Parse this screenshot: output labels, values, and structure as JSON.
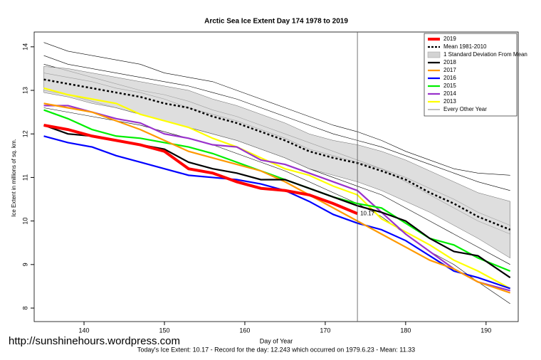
{
  "chart_data": {
    "type": "line",
    "title": "Arctic Sea Ice Extent Day 174 1978 to 2019",
    "xlabel": "Day of Year",
    "ylabel": "Ice Extent in millions of sq. km.",
    "footer": "Today's Ice Extent: 10.17  - Record for the day: 12.243 which occurred on 1979.6.23  - Mean: 11.33",
    "watermark": "http://sunshinehours.wordpress.com",
    "annotation": "10.17",
    "marker_x": 174,
    "xlim": [
      133.8,
      194
    ],
    "xticks": [
      140,
      150,
      160,
      170,
      180,
      190
    ],
    "ylim": [
      7.69,
      14.34
    ],
    "yticks": [
      8,
      9,
      10,
      11,
      12,
      13,
      14
    ],
    "legend": "top-right",
    "x": [
      135,
      138,
      141,
      144,
      147,
      150,
      153,
      156,
      159,
      162,
      165,
      168,
      171,
      174,
      177,
      180,
      183,
      186,
      189,
      193
    ],
    "series": [
      {
        "name": "2019",
        "color": "#ff0000",
        "values": [
          12.2,
          12.1,
          11.95,
          11.85,
          11.75,
          11.6,
          11.2,
          11.1,
          10.9,
          10.75,
          10.7,
          10.6,
          10.4,
          10.17,
          null,
          null,
          null,
          null,
          null,
          null
        ]
      },
      {
        "name": "Mean 1981-2010",
        "color": "#000000",
        "dash": true,
        "values": [
          13.25,
          13.15,
          13.05,
          12.95,
          12.85,
          12.7,
          12.6,
          12.4,
          12.25,
          12.05,
          11.85,
          11.6,
          11.45,
          11.33,
          11.15,
          10.95,
          10.65,
          10.4,
          10.1,
          9.8
        ]
      },
      {
        "name": "2018",
        "color": "#000000",
        "values": [
          12.2,
          12.0,
          11.95,
          11.85,
          11.75,
          11.65,
          11.35,
          11.2,
          11.1,
          10.95,
          10.95,
          10.75,
          10.55,
          10.35,
          10.2,
          10.0,
          9.6,
          9.3,
          9.2,
          8.7
        ]
      },
      {
        "name": "2017",
        "color": "#ff9900",
        "values": [
          12.7,
          12.6,
          12.5,
          12.3,
          12.1,
          11.85,
          11.6,
          11.45,
          11.3,
          11.15,
          10.9,
          10.6,
          10.3,
          10.0,
          9.7,
          9.4,
          9.1,
          8.9,
          8.6,
          8.35
        ]
      },
      {
        "name": "2016",
        "color": "#0000ff",
        "values": [
          11.95,
          11.8,
          11.7,
          11.5,
          11.35,
          11.2,
          11.05,
          11.0,
          10.95,
          10.85,
          10.7,
          10.45,
          10.15,
          9.95,
          9.8,
          9.55,
          9.2,
          8.85,
          8.7,
          8.45
        ]
      },
      {
        "name": "2015",
        "color": "#00ee00",
        "values": [
          12.55,
          12.35,
          12.1,
          11.95,
          11.9,
          11.8,
          11.7,
          11.55,
          11.35,
          11.15,
          10.95,
          10.75,
          10.55,
          10.4,
          10.3,
          9.95,
          9.6,
          9.45,
          9.15,
          8.85
        ]
      },
      {
        "name": "2014",
        "color": "#9933cc",
        "values": [
          12.65,
          12.65,
          12.5,
          12.35,
          12.25,
          12.0,
          11.9,
          11.75,
          11.7,
          11.4,
          11.3,
          11.1,
          10.9,
          10.7,
          10.2,
          9.7,
          9.3,
          8.9,
          8.6,
          8.4
        ]
      },
      {
        "name": "2013",
        "color": "#ffff00",
        "values": [
          13.05,
          12.9,
          12.8,
          12.7,
          12.45,
          12.3,
          12.15,
          11.9,
          11.7,
          11.45,
          11.2,
          11.05,
          10.8,
          10.6,
          10.05,
          9.75,
          9.45,
          9.1,
          8.85,
          8.45
        ]
      }
    ],
    "band": {
      "name": "1 Standard Deviation From Mean",
      "color": "#d3d3d3",
      "upper": [
        13.55,
        13.5,
        13.4,
        13.3,
        13.2,
        13.1,
        13.0,
        12.8,
        12.65,
        12.45,
        12.25,
        12.0,
        11.85,
        11.75,
        11.6,
        11.4,
        11.15,
        10.9,
        10.65,
        10.45
      ],
      "lower": [
        12.95,
        12.85,
        12.7,
        12.6,
        12.45,
        12.3,
        12.15,
        12.0,
        11.85,
        11.65,
        11.45,
        11.2,
        11.05,
        10.9,
        10.7,
        10.45,
        10.2,
        9.9,
        9.6,
        9.15
      ]
    },
    "other_years": {
      "name": "Every Other Year",
      "color": "#000000",
      "lines": [
        [
          13.8,
          13.6,
          13.5,
          13.4,
          13.3,
          13.2,
          13.1,
          12.95,
          12.8,
          12.6,
          12.4,
          12.2,
          12.0,
          11.85,
          11.7,
          11.5,
          11.3,
          11.1,
          10.9,
          10.7
        ],
        [
          13.4,
          13.3,
          13.2,
          13.05,
          12.95,
          12.8,
          12.6,
          12.45,
          12.3,
          12.1,
          11.9,
          11.65,
          11.5,
          11.35,
          11.2,
          11.0,
          10.75,
          10.5,
          10.2,
          9.9
        ],
        [
          13.0,
          12.9,
          12.75,
          12.6,
          12.45,
          12.3,
          12.15,
          12.0,
          11.85,
          11.65,
          11.45,
          11.2,
          11.0,
          10.8,
          10.6,
          10.3,
          10.0,
          9.7,
          9.4,
          9.0
        ],
        [
          12.6,
          12.5,
          12.4,
          12.3,
          12.2,
          12.05,
          11.9,
          11.75,
          11.55,
          11.35,
          11.15,
          10.9,
          10.65,
          10.4,
          10.1,
          9.7,
          9.3,
          9.0,
          8.6,
          8.1
        ],
        [
          14.1,
          13.9,
          13.8,
          13.7,
          13.6,
          13.4,
          13.3,
          13.2,
          13.0,
          12.8,
          12.6,
          12.4,
          12.2,
          12.05,
          11.85,
          11.6,
          11.4,
          11.2,
          11.1,
          11.05
        ],
        [
          13.6,
          13.45,
          13.3,
          13.15,
          13.0,
          12.9,
          12.75,
          12.55,
          12.4,
          12.2,
          12.0,
          11.8,
          11.6,
          11.4,
          11.2,
          10.9,
          10.6,
          10.3,
          10.0,
          9.7
        ]
      ]
    }
  }
}
